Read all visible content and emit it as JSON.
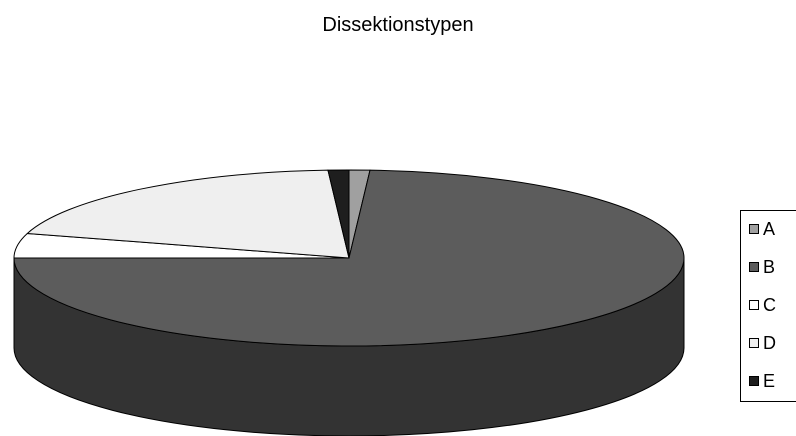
{
  "chart_data": {
    "type": "pie",
    "style": "3d",
    "title": "Dissektionstypen",
    "legend_position": "right",
    "categories": [
      "A",
      "B",
      "C",
      "D",
      "E"
    ],
    "values": [
      1.0,
      74.0,
      4.5,
      19.5,
      1.0
    ],
    "colors": [
      "#a0a0a0",
      "#5c5c5c",
      "#ffffff",
      "#efefef",
      "#1e1e1e"
    ],
    "side_colors": [
      "#404040",
      "#333333",
      "#e0e0e0",
      "#d0d0d0",
      "#121212"
    ]
  }
}
